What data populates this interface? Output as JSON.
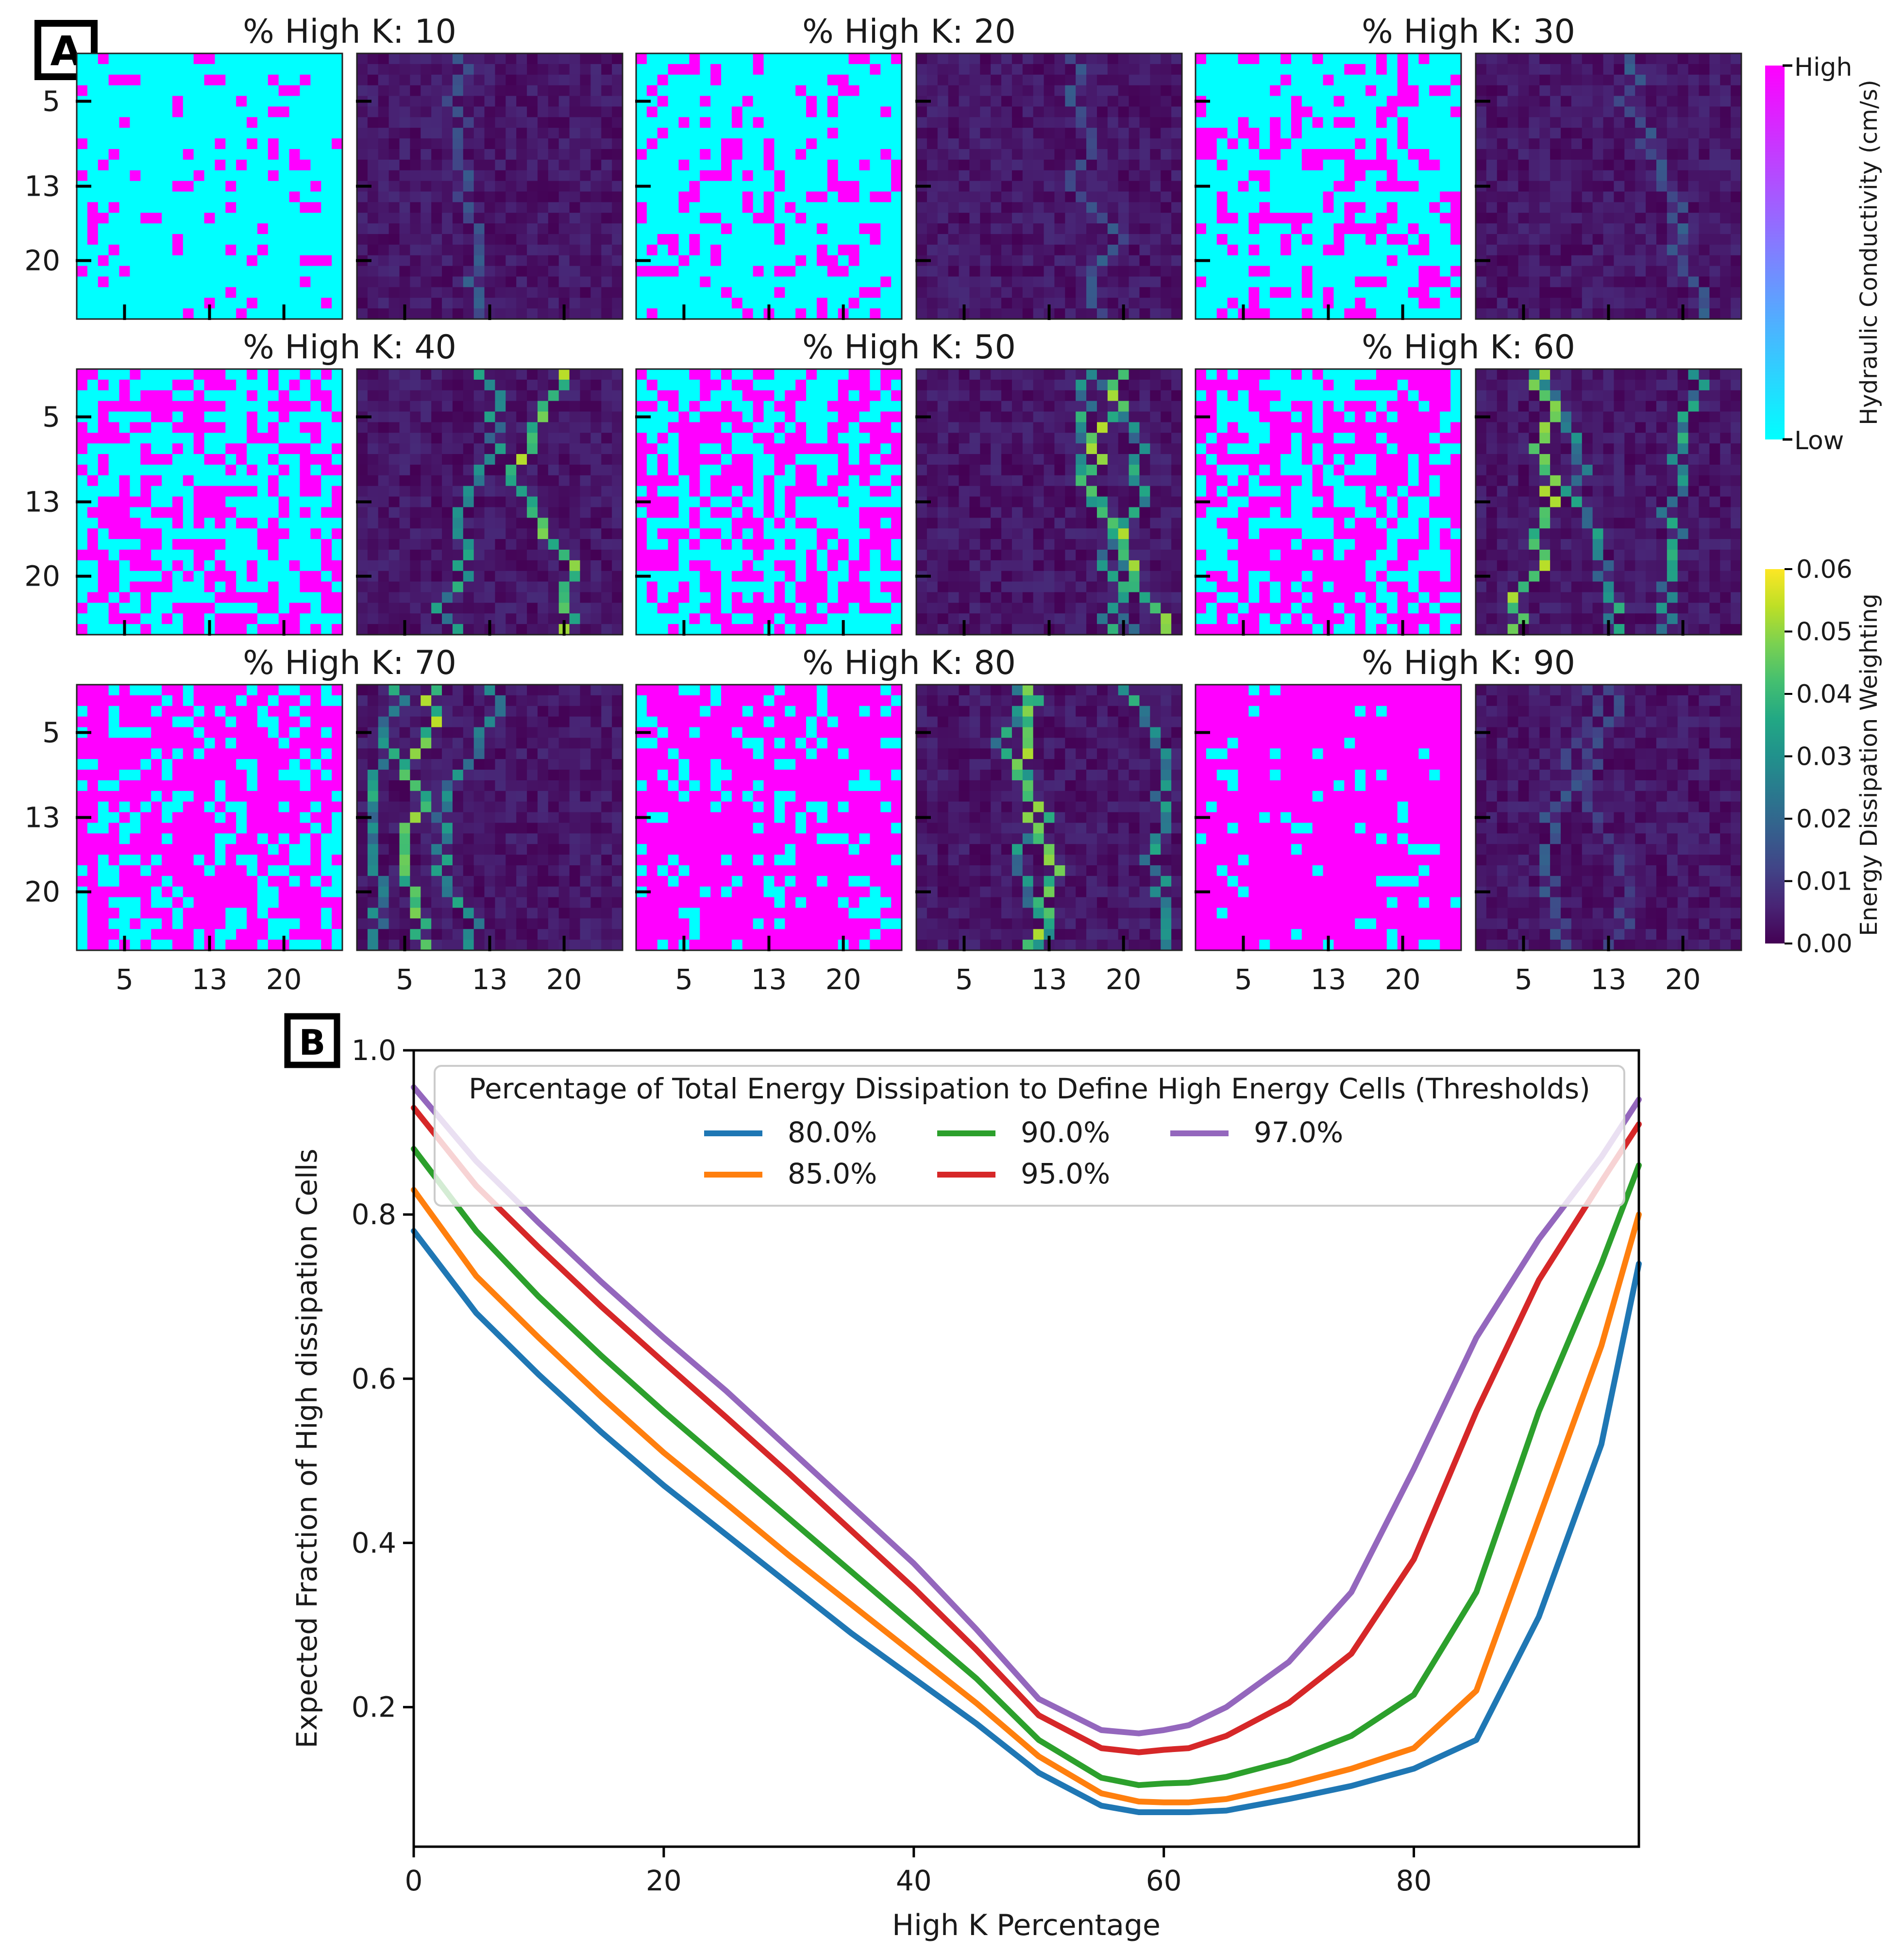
{
  "panel_a": {
    "letter": "A",
    "title_prefix": "% High K: ",
    "tick_labels": [
      "5",
      "13",
      "20"
    ],
    "panels": [
      {
        "percent": 10,
        "k_field_seed": 11,
        "dissipation_seed": 111
      },
      {
        "percent": 20,
        "k_field_seed": 12,
        "dissipation_seed": 112
      },
      {
        "percent": 30,
        "k_field_seed": 13,
        "dissipation_seed": 113
      },
      {
        "percent": 40,
        "k_field_seed": 14,
        "dissipation_seed": 114
      },
      {
        "percent": 50,
        "k_field_seed": 15,
        "dissipation_seed": 115
      },
      {
        "percent": 60,
        "k_field_seed": 16,
        "dissipation_seed": 116
      },
      {
        "percent": 70,
        "k_field_seed": 17,
        "dissipation_seed": 117
      },
      {
        "percent": 80,
        "k_field_seed": 18,
        "dissipation_seed": 118
      },
      {
        "percent": 90,
        "k_field_seed": 19,
        "dissipation_seed": 119
      }
    ],
    "k_colorbar": {
      "label": "Hydraulic Conductivity (cm/s)",
      "high_label": "High",
      "low_label": "Low",
      "high_color": "#ff00ff",
      "low_color": "#00ffff"
    },
    "energy_colorbar": {
      "label": "Energy Dissipation Weighting",
      "ticks": [
        "0.00",
        "0.01",
        "0.02",
        "0.03",
        "0.04",
        "0.05",
        "0.06"
      ],
      "range": [
        0,
        0.06
      ]
    }
  },
  "chart_data": {
    "type": "line",
    "panel_letter": "B",
    "title": "",
    "xlabel": "High K Percentage",
    "ylabel": "Expected Fraction of High dissipation Cells",
    "xlim": [
      0,
      98
    ],
    "ylim": [
      0.03,
      1.0
    ],
    "x_ticks": [
      0,
      20,
      40,
      60,
      80
    ],
    "y_ticks": [
      0.2,
      0.4,
      0.6,
      0.8,
      1.0
    ],
    "y_tick_labels": [
      "0.2",
      "0.4",
      "0.6",
      "0.8",
      "1.0"
    ],
    "legend_title": "Percentage of Total Energy Dissipation to Define High Energy Cells (Thresholds)",
    "legend_position": "top-center",
    "x": [
      0,
      5,
      10,
      15,
      20,
      25,
      30,
      35,
      40,
      45,
      50,
      55,
      58,
      60,
      62,
      65,
      70,
      75,
      80,
      85,
      90,
      95,
      98
    ],
    "series": [
      {
        "name": "80.0%",
        "color": "#1f77b4",
        "values": [
          0.78,
          0.68,
          0.605,
          0.535,
          0.47,
          0.41,
          0.35,
          0.29,
          0.235,
          0.18,
          0.12,
          0.08,
          0.072,
          0.072,
          0.072,
          0.074,
          0.088,
          0.104,
          0.125,
          0.16,
          0.31,
          0.52,
          0.74
        ]
      },
      {
        "name": "85.0%",
        "color": "#ff7f0e",
        "values": [
          0.83,
          0.725,
          0.65,
          0.578,
          0.51,
          0.448,
          0.385,
          0.325,
          0.265,
          0.205,
          0.14,
          0.095,
          0.085,
          0.084,
          0.084,
          0.088,
          0.105,
          0.125,
          0.15,
          0.22,
          0.43,
          0.64,
          0.8
        ]
      },
      {
        "name": "90.0%",
        "color": "#2ca02c",
        "values": [
          0.88,
          0.78,
          0.7,
          0.628,
          0.56,
          0.495,
          0.43,
          0.365,
          0.3,
          0.235,
          0.16,
          0.114,
          0.105,
          0.107,
          0.108,
          0.115,
          0.135,
          0.165,
          0.215,
          0.34,
          0.56,
          0.74,
          0.86
        ]
      },
      {
        "name": "95.0%",
        "color": "#d62728",
        "values": [
          0.93,
          0.835,
          0.76,
          0.688,
          0.62,
          0.553,
          0.485,
          0.415,
          0.345,
          0.27,
          0.19,
          0.15,
          0.145,
          0.148,
          0.15,
          0.165,
          0.205,
          0.265,
          0.38,
          0.56,
          0.72,
          0.84,
          0.91
        ]
      },
      {
        "name": "97.0%",
        "color": "#9467bd",
        "values": [
          0.955,
          0.865,
          0.79,
          0.718,
          0.65,
          0.585,
          0.515,
          0.445,
          0.375,
          0.295,
          0.21,
          0.172,
          0.168,
          0.172,
          0.178,
          0.2,
          0.255,
          0.34,
          0.49,
          0.65,
          0.77,
          0.87,
          0.94
        ]
      }
    ]
  }
}
